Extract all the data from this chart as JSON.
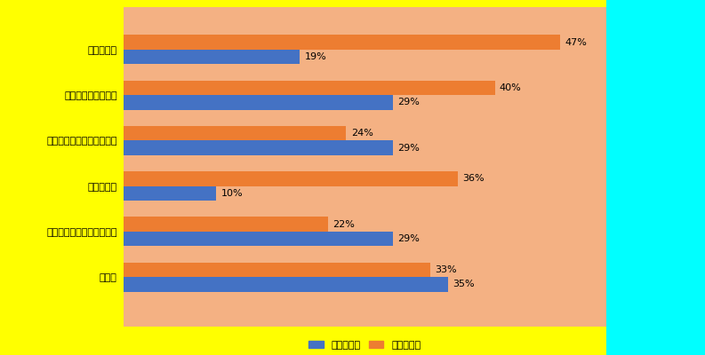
{
  "categories": [
    "恋愛が面倒",
    "交際するのがこわい",
    "自分の趣味に力を入れたい",
    "興味がない",
    "仕事や勉強に力を入れたい",
    "その他"
  ],
  "shintai": [
    19,
    29,
    29,
    10,
    29,
    35
  ],
  "seishin": [
    47,
    40,
    24,
    36,
    22,
    33
  ],
  "color_shintai": "#4472C4",
  "color_seishin": "#ED7D31",
  "label_shintai": "身体障がい",
  "label_seishin": "精神障がい",
  "bar_height": 0.32,
  "xlim_max": 52,
  "figsize": [
    7.93,
    4.0
  ],
  "dpi": 100,
  "bg_left": "#FFFF00",
  "bg_right": "#00FFFF",
  "bg_bars": "#F4B183",
  "label_fontsize": 8,
  "tick_fontsize": 8,
  "legend_fontsize": 8
}
